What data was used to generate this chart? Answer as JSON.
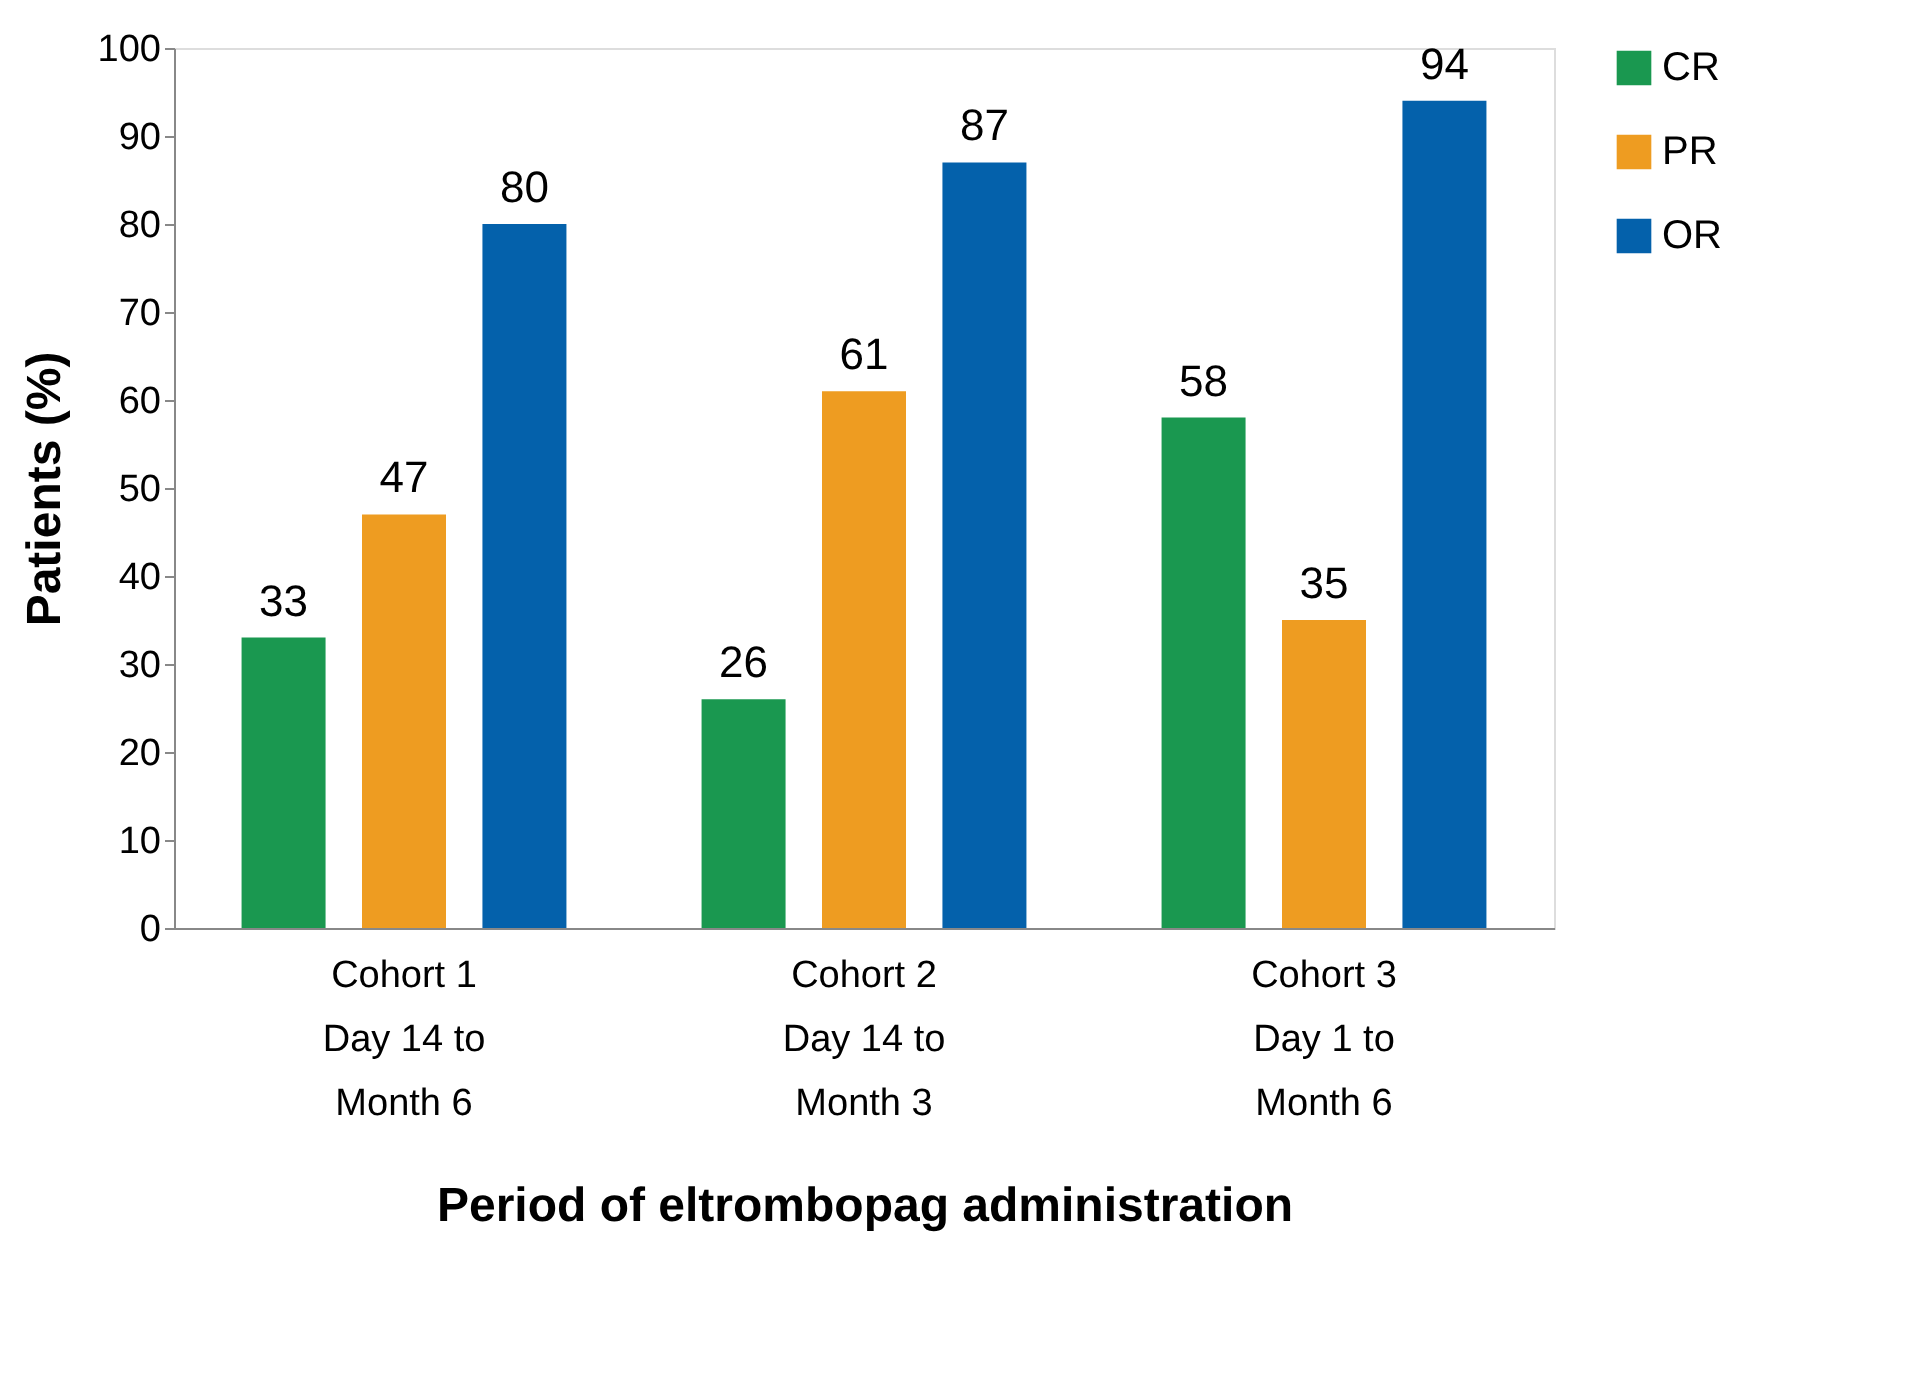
{
  "chart_data": {
    "type": "bar",
    "xlabel": "Period of eltrombopag administration",
    "ylabel": "Patients (%)",
    "categories": [
      "Cohort 1\nDay 14 to\nMonth 6",
      "Cohort 2\nDay 14 to\nMonth 3",
      "Cohort 3\nDay 1 to\nMonth 6"
    ],
    "series": [
      {
        "name": "CR",
        "color": "#1a9850",
        "values": [
          33,
          26,
          58
        ]
      },
      {
        "name": "PR",
        "color": "#ee9c21",
        "values": [
          47,
          61,
          35
        ]
      },
      {
        "name": "OR",
        "color": "#0461ab",
        "values": [
          80,
          87,
          94
        ]
      }
    ],
    "ylim": [
      0,
      100
    ],
    "yticks": [
      0,
      10,
      20,
      30,
      40,
      50,
      60,
      70,
      80,
      90,
      100
    ],
    "data_labels": true,
    "grid": false,
    "legend": "top right"
  }
}
